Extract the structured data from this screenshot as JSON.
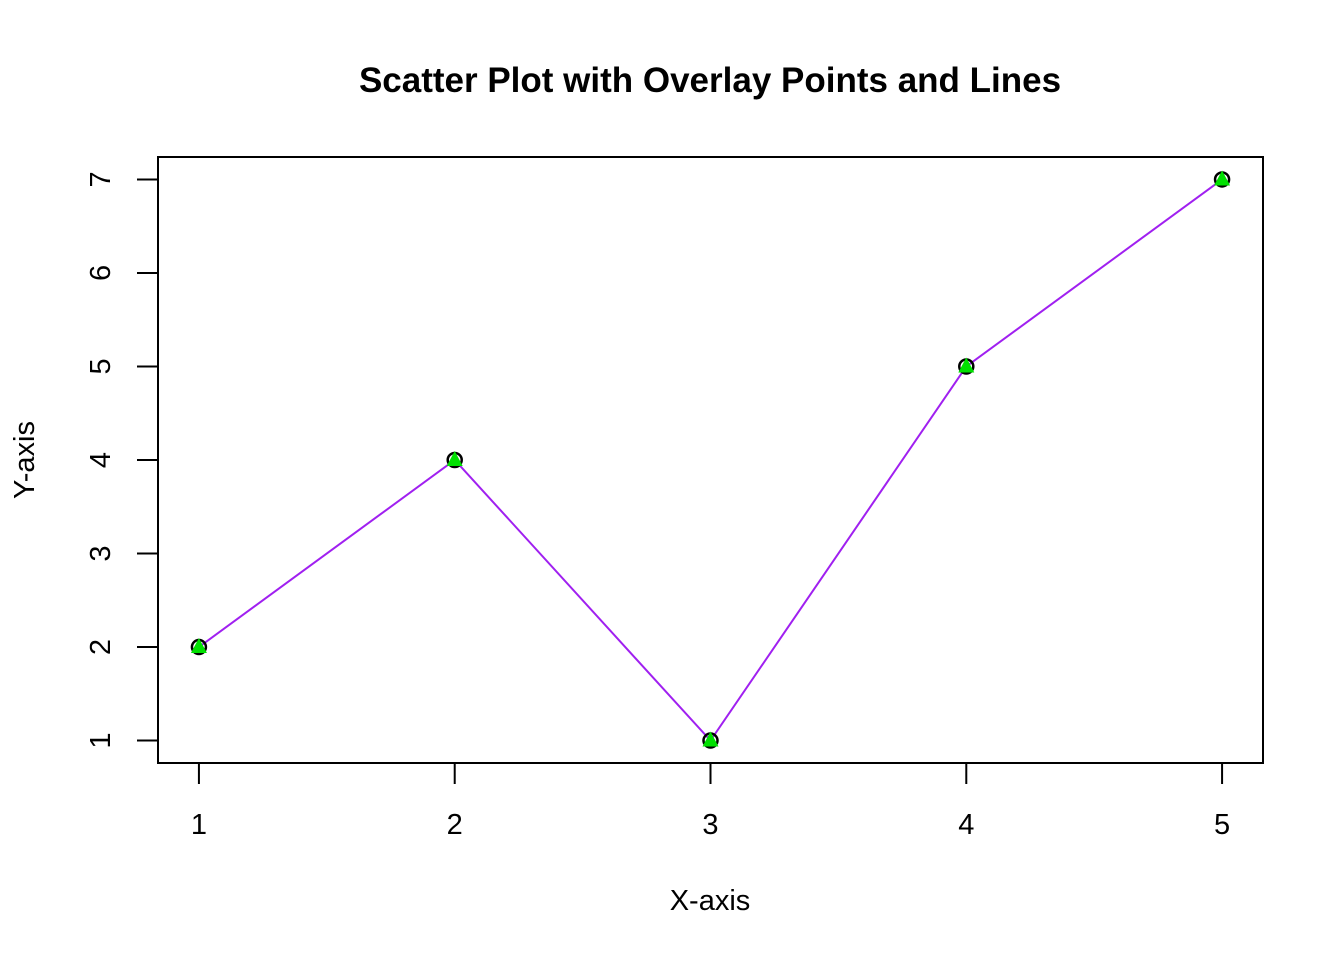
{
  "chart_data": {
    "type": "scatter",
    "title": "Scatter Plot with Overlay Points and Lines",
    "xlabel": "X-axis",
    "ylabel": "Y-axis",
    "x": [
      1,
      2,
      3,
      4,
      5
    ],
    "y": [
      2,
      4,
      1,
      5,
      7
    ],
    "xlim": [
      0.84,
      5.16
    ],
    "ylim": [
      0.76,
      7.24
    ],
    "xticks": [
      "1",
      "2",
      "3",
      "4",
      "5"
    ],
    "yticks": [
      "1",
      "2",
      "3",
      "4",
      "5",
      "6",
      "7"
    ],
    "grid": false,
    "legend": "none",
    "series": [
      {
        "marker": "open-circle",
        "color": "#000000"
      },
      {
        "marker": "filled-triangle",
        "color": "#00e000"
      },
      {
        "marker": "line",
        "color": "#a020f0"
      }
    ]
  }
}
